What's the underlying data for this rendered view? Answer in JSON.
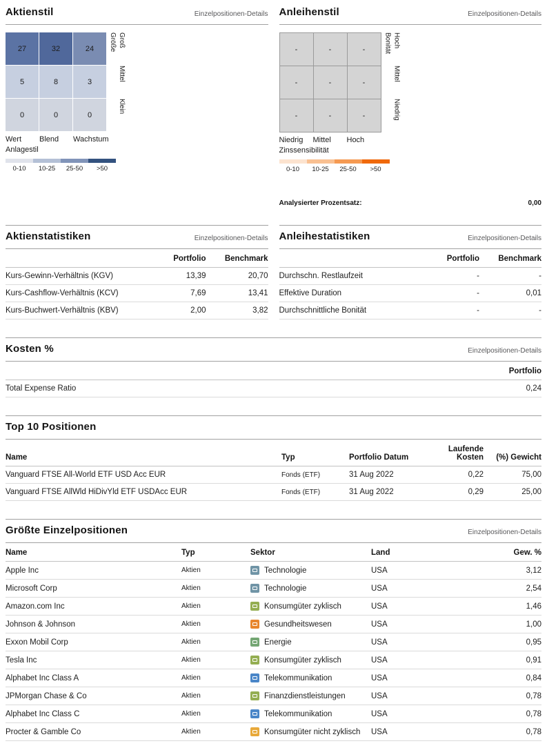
{
  "links": {
    "details": "Einzelpositionen-Details"
  },
  "equity_style": {
    "title": "Aktienstil",
    "row_axis": "Größe",
    "row_labels": [
      "Groß",
      "Mittel",
      "Klein"
    ],
    "col_labels": [
      "Wert",
      "Blend",
      "Wachstum"
    ],
    "col_axis": "Anlagestil",
    "cells": [
      {
        "value": "27",
        "color": "#5b73a4"
      },
      {
        "value": "32",
        "color": "#50689b"
      },
      {
        "value": "24",
        "color": "#7a8cb2"
      },
      {
        "value": "5",
        "color": "#c6cfe0"
      },
      {
        "value": "8",
        "color": "#c6cfe0"
      },
      {
        "value": "3",
        "color": "#c6cfe0"
      },
      {
        "value": "0",
        "color": "#d0d5df"
      },
      {
        "value": "0",
        "color": "#d0d5df"
      },
      {
        "value": "0",
        "color": "#d0d5df"
      }
    ],
    "legend": [
      {
        "label": "0-10",
        "color": "#e0e3eb"
      },
      {
        "label": "10-25",
        "color": "#b4c0d6"
      },
      {
        "label": "25-50",
        "color": "#8194b9"
      },
      {
        "label": ">50",
        "color": "#33527f"
      }
    ]
  },
  "bond_style": {
    "title": "Anleihenstil",
    "row_axis": "Bonität",
    "row_labels": [
      "Hoch",
      "Mittel",
      "Niedrig"
    ],
    "col_labels": [
      "Niedrig",
      "Mittel",
      "Hoch"
    ],
    "col_axis": "Zinssensibilität",
    "cells": [
      "-",
      "-",
      "-",
      "-",
      "-",
      "-",
      "-",
      "-",
      "-"
    ],
    "cell_color": "#d4d4d4",
    "legend": [
      {
        "label": "0-10",
        "color": "#fce3cf"
      },
      {
        "label": "10-25",
        "color": "#f9c091"
      },
      {
        "label": "25-50",
        "color": "#f59a52"
      },
      {
        "label": ">50",
        "color": "#f0690b"
      }
    ],
    "analyzed_label": "Analysierter Prozentsatz:",
    "analyzed_value": "0,00"
  },
  "equity_stats": {
    "title": "Aktienstatistiken",
    "col_headers": [
      "Portfolio",
      "Benchmark"
    ],
    "rows": [
      {
        "label": "Kurs-Gewinn-Verhältnis (KGV)",
        "portfolio": "13,39",
        "benchmark": "20,70"
      },
      {
        "label": "Kurs-Cashflow-Verhältnis (KCV)",
        "portfolio": "7,69",
        "benchmark": "13,41"
      },
      {
        "label": "Kurs-Buchwert-Verhältnis (KBV)",
        "portfolio": "2,00",
        "benchmark": "3,82"
      }
    ]
  },
  "bond_stats": {
    "title": "Anleihestatistiken",
    "col_headers": [
      "Portfolio",
      "Benchmark"
    ],
    "rows": [
      {
        "label": "Durchschn. Restlaufzeit",
        "portfolio": "-",
        "benchmark": "-"
      },
      {
        "label": "Effektive Duration",
        "portfolio": "-",
        "benchmark": "0,01"
      },
      {
        "label": "Durchschnittliche Bonität",
        "portfolio": "-",
        "benchmark": "-"
      }
    ]
  },
  "costs": {
    "title": "Kosten %",
    "col_header": "Portfolio",
    "rows": [
      {
        "label": "Total Expense Ratio",
        "value": "0,24"
      }
    ]
  },
  "top10": {
    "title": "Top 10 Positionen",
    "col_headers": {
      "name": "Name",
      "type": "Typ",
      "date": "Portfolio Datum",
      "costs": "Laufende Kosten",
      "weight": "(%) Gewicht"
    },
    "rows": [
      {
        "name": "Vanguard FTSE All-World ETF USD Acc EUR",
        "type": "Fonds (ETF)",
        "date": "31 Aug 2022",
        "costs": "0,22",
        "weight": "75,00"
      },
      {
        "name": "Vanguard FTSE AllWld HiDivYld ETF USDAcc EUR",
        "type": "Fonds (ETF)",
        "date": "31 Aug 2022",
        "costs": "0,29",
        "weight": "25,00"
      }
    ]
  },
  "holdings": {
    "title": "Größte Einzelpositionen",
    "col_headers": {
      "name": "Name",
      "type": "Typ",
      "sector": "Sektor",
      "country": "Land",
      "weight": "Gew. %"
    },
    "rows": [
      {
        "name": "Apple Inc",
        "type": "Aktien",
        "sector": "Technologie",
        "sector_color": "#7094a6",
        "country": "USA",
        "weight": "3,12"
      },
      {
        "name": "Microsoft Corp",
        "type": "Aktien",
        "sector": "Technologie",
        "sector_color": "#7094a6",
        "country": "USA",
        "weight": "2,54"
      },
      {
        "name": "Amazon.com Inc",
        "type": "Aktien",
        "sector": "Konsumgüter zyklisch",
        "sector_color": "#94ae52",
        "country": "USA",
        "weight": "1,46"
      },
      {
        "name": "Johnson & Johnson",
        "type": "Aktien",
        "sector": "Gesundheitswesen",
        "sector_color": "#e8862d",
        "country": "USA",
        "weight": "1,00"
      },
      {
        "name": "Exxon Mobil Corp",
        "type": "Aktien",
        "sector": "Energie",
        "sector_color": "#74a673",
        "country": "USA",
        "weight": "0,95"
      },
      {
        "name": "Tesla Inc",
        "type": "Aktien",
        "sector": "Konsumgüter zyklisch",
        "sector_color": "#94ae52",
        "country": "USA",
        "weight": "0,91"
      },
      {
        "name": "Alphabet Inc Class A",
        "type": "Aktien",
        "sector": "Telekommunikation",
        "sector_color": "#4a86c8",
        "country": "USA",
        "weight": "0,84"
      },
      {
        "name": "JPMorgan Chase & Co",
        "type": "Aktien",
        "sector": "Finanzdienstleistungen",
        "sector_color": "#94ae52",
        "country": "USA",
        "weight": "0,78"
      },
      {
        "name": "Alphabet Inc Class C",
        "type": "Aktien",
        "sector": "Telekommunikation",
        "sector_color": "#4a86c8",
        "country": "USA",
        "weight": "0,78"
      },
      {
        "name": "Procter & Gamble Co",
        "type": "Aktien",
        "sector": "Konsumgüter nicht zyklisch",
        "sector_color": "#e8a93a",
        "country": "USA",
        "weight": "0,78"
      }
    ]
  }
}
